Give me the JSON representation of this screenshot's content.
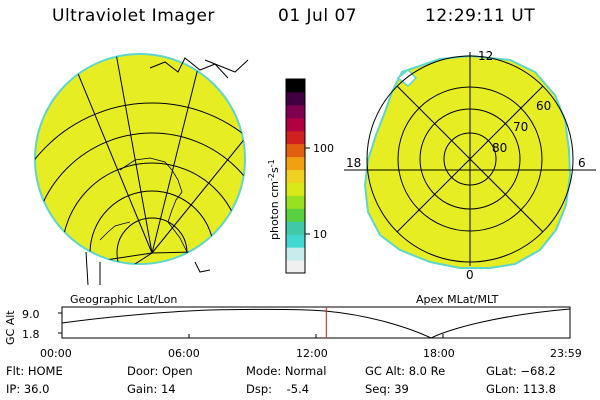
{
  "header": {
    "title": "Ultraviolet Imager",
    "date": "01 Jul 07",
    "time": "12:29:11 UT"
  },
  "colors": {
    "image_fill": "#e6ee23",
    "image_edge": "#5fd6c9",
    "grid": "#000000",
    "time_marker": "#cc2222"
  },
  "colorbar": {
    "unit_label": "photon cm",
    "unit_sup1": "-2",
    "unit_mid": "s",
    "unit_sup2": "-1",
    "tick_100": "100",
    "tick_10": "10",
    "palette": [
      "#f0f0f0",
      "#c8ecec",
      "#40d8d0",
      "#40c8a8",
      "#58d040",
      "#98e020",
      "#d8e818",
      "#f0d020",
      "#f0a010",
      "#e06010",
      "#d02020",
      "#b00040",
      "#800050",
      "#400040",
      "#000000"
    ]
  },
  "geographic_panel": {
    "label": "Geographic Lat/Lon"
  },
  "apex_panel": {
    "label": "Apex MLat/MLT",
    "mlt_top": "12",
    "mlt_left": "18",
    "mlt_right": "6",
    "mlt_bottom": "0",
    "lat_60": "60",
    "lat_70": "70",
    "lat_80": "80"
  },
  "altitude_plot": {
    "ylabel": "GC Alt",
    "ytick_high": "9.0",
    "ytick_low": "1.8",
    "xticks": [
      "00:00",
      "06:00",
      "12:00",
      "18:00",
      "23:59"
    ],
    "marker_time_hours": 12.486
  },
  "info": {
    "flt": "Flt: HOME",
    "ip": "IP: 36.0",
    "door": "Door: Open",
    "gain": "Gain: 14",
    "mode": "Mode: Normal",
    "dsp": "Dsp:    -5.4",
    "gc_alt": "GC Alt: 8.0 Re",
    "seq": "Seq: 39",
    "glat": "GLat: −68.2",
    "glon": "GLon: 113.8"
  }
}
